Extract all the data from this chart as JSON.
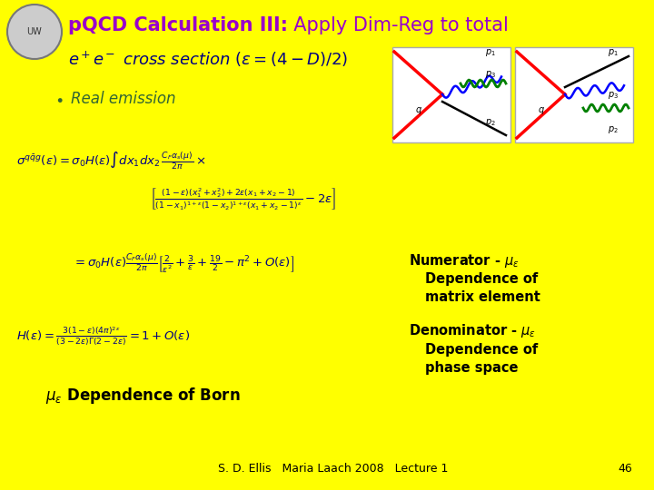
{
  "background_color": "#FFFF00",
  "title_bold": "pQCD Calculation III:",
  "title_normal": "  Apply Dim-Reg to total",
  "subtitle_text": "e",
  "bullet": "Real emission",
  "footer": "S. D. Ellis   Maria Laach 2008   Lecture 1",
  "page_num": "46",
  "title_color": "#9900CC",
  "subtitle_color": "#000080",
  "bullet_color": "#336633",
  "eq_color": "#000080",
  "note_color": "#000000",
  "footer_color": "#000000",
  "diagram_bg": "#FFFFFF",
  "diagram_border": "#CCCCCC"
}
